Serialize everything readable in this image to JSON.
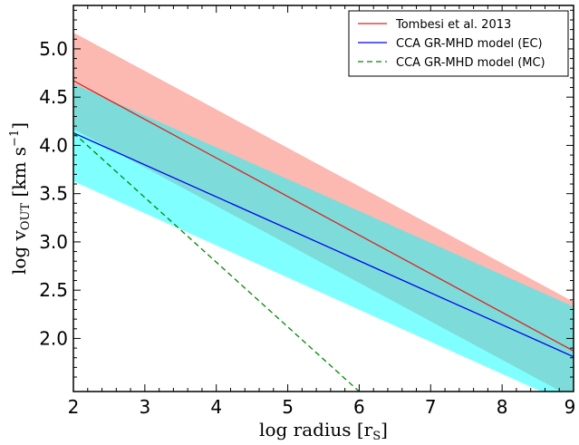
{
  "chart_data": {
    "type": "line",
    "xlabel": "log radius  [r_S]",
    "xlabel_main": "log radius",
    "xlabel_unit": "r",
    "xlabel_unit_sub": "S",
    "ylabel": "log v_OUT  [km s^-1]",
    "ylabel_main": "log v",
    "ylabel_sub": "OUT",
    "ylabel_unit": "km s",
    "ylabel_unit_sup": "−1",
    "xlim": [
      2,
      9
    ],
    "ylim": [
      1.45,
      5.45
    ],
    "xticks": [
      {
        "v": 2,
        "label": "2"
      },
      {
        "v": 3,
        "label": "3"
      },
      {
        "v": 4,
        "label": "4"
      },
      {
        "v": 5,
        "label": "5"
      },
      {
        "v": 6,
        "label": "6"
      },
      {
        "v": 7,
        "label": "7"
      },
      {
        "v": 8,
        "label": "8"
      },
      {
        "v": 9,
        "label": "9"
      }
    ],
    "yticks": [
      {
        "v": 2.0,
        "label": "2.0"
      },
      {
        "v": 2.5,
        "label": "2.5"
      },
      {
        "v": 3.0,
        "label": "3.0"
      },
      {
        "v": 3.5,
        "label": "3.5"
      },
      {
        "v": 4.0,
        "label": "4.0"
      },
      {
        "v": 4.5,
        "label": "4.5"
      },
      {
        "v": 5.0,
        "label": "5.0"
      }
    ],
    "legend_position": "top-right",
    "grid": false,
    "bands": [
      {
        "name": "Tombesi et al. 2013 range",
        "color": "#fbb9b2",
        "x": [
          2,
          9
        ],
        "upper": [
          5.17,
          2.38
        ],
        "lower": [
          4.17,
          1.38
        ]
      },
      {
        "name": "CCA GR-MHD model (EC) range",
        "color": "#00ffff",
        "opacity": 0.5,
        "x": [
          2,
          9
        ],
        "upper": [
          4.64,
          2.33
        ],
        "lower": [
          3.63,
          1.3
        ]
      }
    ],
    "series": [
      {
        "name": "Tombesi et al. 2013",
        "color": "#dd2222",
        "dash": "solid",
        "x": [
          2,
          9
        ],
        "y": [
          4.67,
          1.87
        ]
      },
      {
        "name": "CCA GR-MHD model (EC)",
        "color": "#0000ee",
        "dash": "solid",
        "x": [
          2,
          9
        ],
        "y": [
          4.13,
          1.81
        ]
      },
      {
        "name": "CCA GR-MHD model (MC)",
        "color": "#008800",
        "dash": "dashed",
        "x": [
          2,
          6.0
        ],
        "y": [
          4.13,
          1.45
        ]
      }
    ]
  }
}
